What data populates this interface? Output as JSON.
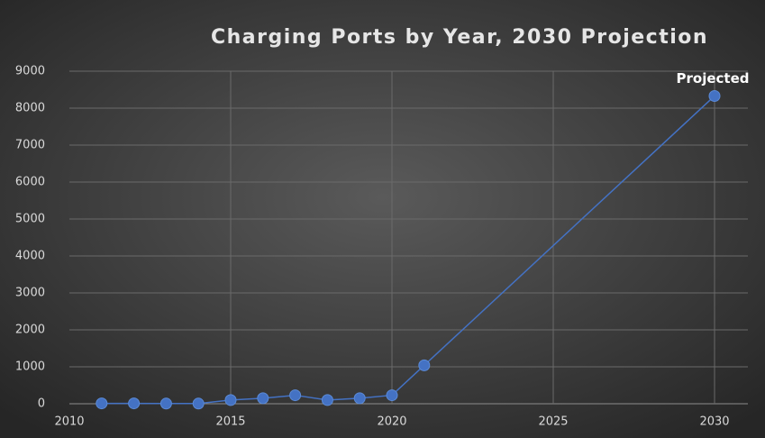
{
  "chart_data": {
    "type": "line",
    "title": "Charging Ports by Year, 2030 Projection",
    "x": [
      2011,
      2012,
      2013,
      2014,
      2015,
      2016,
      2017,
      2018,
      2019,
      2020,
      2021,
      2030
    ],
    "series": [
      {
        "name": "Charging Ports",
        "color": "#4472c4",
        "values": [
          10,
          10,
          5,
          5,
          100,
          150,
          230,
          100,
          150,
          230,
          1040,
          8330
        ]
      }
    ],
    "annotation": "Projected",
    "xlim": [
      2010,
      2030
    ],
    "xticks": [
      2010,
      2015,
      2020,
      2025,
      2030
    ],
    "ylim": [
      0,
      9000
    ],
    "yticks": [
      0,
      1000,
      2000,
      3000,
      4000,
      5000,
      6000,
      7000,
      8000,
      9000
    ],
    "grid": true
  }
}
